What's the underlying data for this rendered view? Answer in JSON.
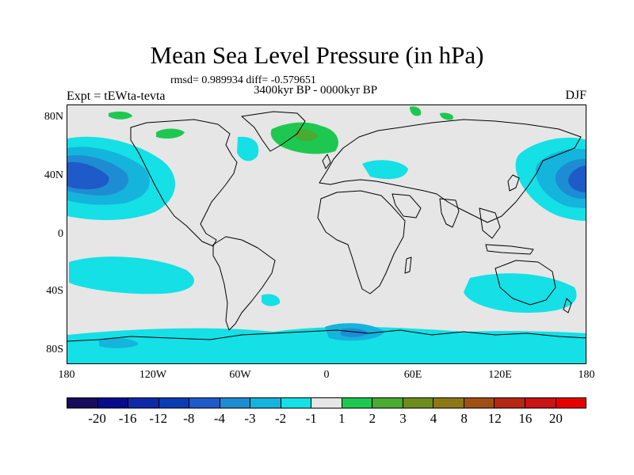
{
  "title": "Mean Sea Level Pressure (in hPa)",
  "stats": "rmsd= 0.989934 diff= -0.579651",
  "period": "3400kyr BP - 0000kyr BP",
  "expt": "Expt = tEWta-tevta",
  "season": "DJF",
  "axes": {
    "y_ticks": [
      "80N",
      "40N",
      "0",
      "40S",
      "80S"
    ],
    "x_ticks": [
      "180",
      "120W",
      "60W",
      "0",
      "60E",
      "120E",
      "180"
    ]
  },
  "colorbar": {
    "labels": [
      "-20",
      "-16",
      "-12",
      "-8",
      "-4",
      "-3",
      "-2",
      "-1",
      "1",
      "2",
      "3",
      "4",
      "8",
      "12",
      "16",
      "20"
    ],
    "colors": [
      "#180a5c",
      "#0a0a8c",
      "#0f2aa8",
      "#0a3cb4",
      "#1e5ac8",
      "#1e8cd2",
      "#14b4dc",
      "#14e0e6",
      "#e6e6e6",
      "#1ec850",
      "#4aaa32",
      "#6e8c1e",
      "#8c7814",
      "#a05014",
      "#b42814",
      "#c81414",
      "#e60000"
    ]
  },
  "colors": {
    "background": "#e6e6e6",
    "coast": "#000000"
  }
}
